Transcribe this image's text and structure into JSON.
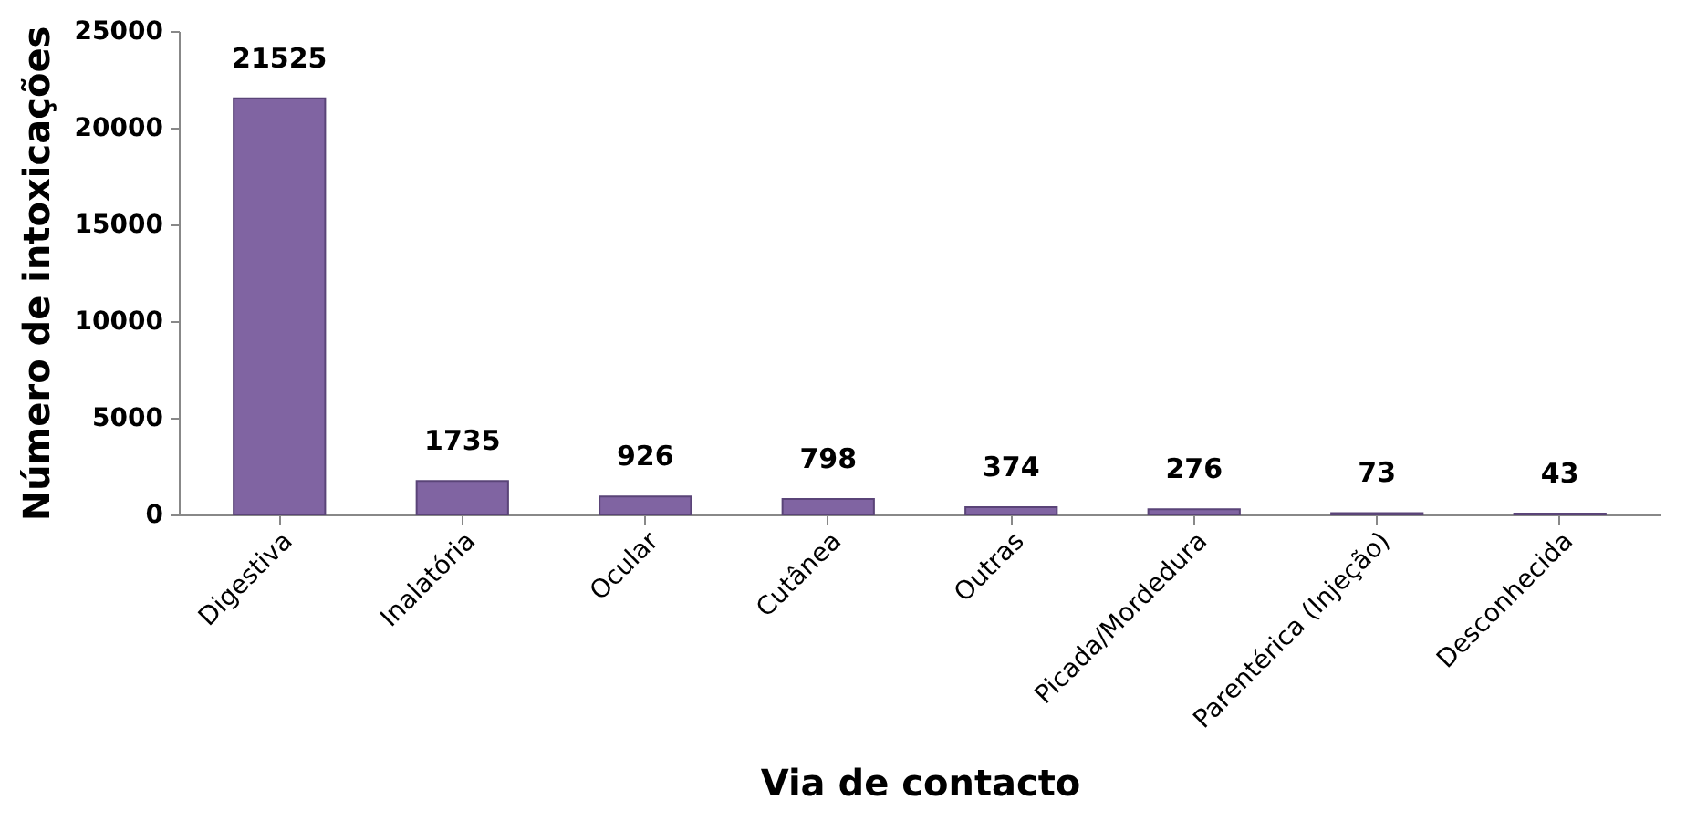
{
  "chart_data": {
    "type": "bar",
    "xlabel": "Via de contacto",
    "ylabel": "Número de intoxicações",
    "categories": [
      "Digestiva",
      "Inalatória",
      "Ocular",
      "Cutânea",
      "Outras",
      "Picada/Mordedura",
      "Parentérica (Injeção)",
      "Desconhecida"
    ],
    "values": [
      21525,
      1735,
      926,
      798,
      374,
      276,
      73,
      43
    ],
    "color": "#8064a2",
    "ylim": [
      0,
      25000
    ],
    "yticks": [
      0,
      5000,
      10000,
      15000,
      20000,
      25000
    ],
    "data_labels": true
  }
}
